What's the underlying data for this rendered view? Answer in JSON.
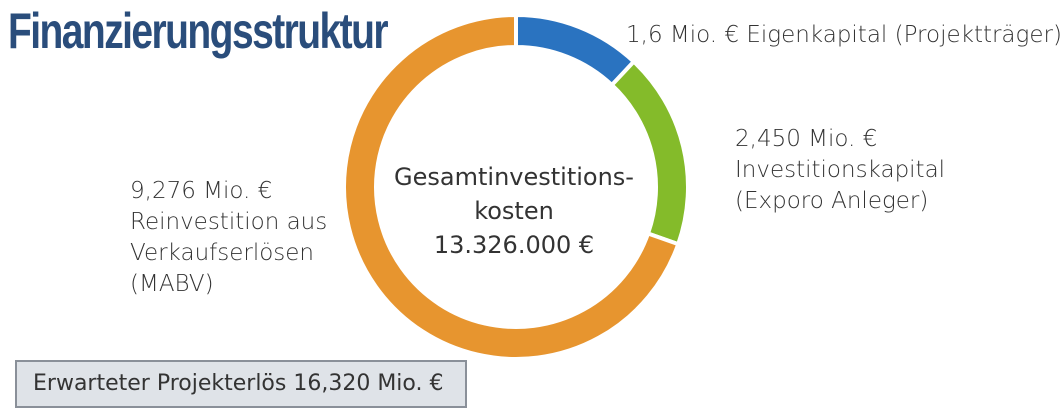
{
  "title": "Finanzierungsstruktur",
  "chart_data": {
    "type": "pie",
    "variant": "donut",
    "slices": [
      {
        "name": "Eigenkapital (Projektträger)",
        "value": 1.6,
        "unit": "Mio. €",
        "color": "#2a73c0"
      },
      {
        "name": "Investitionskapital (Exporo Anleger)",
        "value": 2.45,
        "unit": "Mio. €",
        "color": "#84bb2a"
      },
      {
        "name": "Reinvestition aus Verkaufserlösen (MABV)",
        "value": 9.276,
        "unit": "Mio. €",
        "color": "#e7952f"
      }
    ],
    "center_label": [
      "Gesamtinvestitions-",
      "kosten",
      "13.326.000 €"
    ]
  },
  "labels": {
    "eigenkapital": "1,6 Mio. € Eigenkapital (Projektträger)",
    "investition": [
      "2,450 Mio. €",
      "Investitionskapital",
      "(Exporo Anleger)"
    ],
    "reinvestition": [
      "9,276 Mio. €",
      "Reinvestition aus",
      "Verkaufserlösen",
      "(MABV)"
    ]
  },
  "footer": "Erwarteter Projekterlös 16,320 Mio. €"
}
